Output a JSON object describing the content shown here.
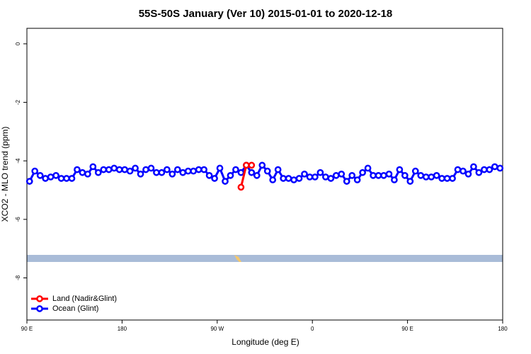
{
  "chart_data": {
    "type": "line",
    "title": "55S-50S January (Ver 10)   2015-01-01 to 2020-12-18",
    "xlabel": "Longitude (deg E)",
    "ylabel": "XCO2 - MLO trend (ppm)",
    "xlim": [
      90,
      540
    ],
    "ylim": [
      -9.44,
      0.53
    ],
    "xticks": [
      {
        "value": 90,
        "label": "90 E"
      },
      {
        "value": 180,
        "label": "180"
      },
      {
        "value": 270,
        "label": "90 W"
      },
      {
        "value": 360,
        "label": "0"
      },
      {
        "value": 450,
        "label": "90 E"
      },
      {
        "value": 540,
        "label": "180"
      }
    ],
    "yticks": [
      0,
      -2,
      -4,
      -6,
      -8
    ],
    "legend": "bottom-left",
    "series": [
      {
        "name": "Land (Nadir&Glint)",
        "color": "#ff0000",
        "x": [
          292.5,
          297.5,
          302.5
        ],
        "values": [
          -4.9,
          -4.15,
          -4.15
        ]
      },
      {
        "name": "Ocean (Glint)",
        "color": "#0000ff",
        "x": [
          92.5,
          97.5,
          102.5,
          107.5,
          112.5,
          117.5,
          122.5,
          127.5,
          132.5,
          137.5,
          142.5,
          147.5,
          152.5,
          157.5,
          162.5,
          167.5,
          172.5,
          177.5,
          182.5,
          187.5,
          192.5,
          197.5,
          202.5,
          207.5,
          212.5,
          217.5,
          222.5,
          227.5,
          232.5,
          237.5,
          242.5,
          247.5,
          252.5,
          257.5,
          262.5,
          267.5,
          272.5,
          277.5,
          282.5,
          287.5,
          292.5,
          297.5,
          302.5,
          307.5,
          312.5,
          317.5,
          322.5,
          327.5,
          332.5,
          337.5,
          342.5,
          347.5,
          352.5,
          357.5,
          362.5,
          367.5,
          372.5,
          377.5,
          382.5,
          387.5,
          392.5,
          397.5,
          402.5,
          407.5,
          412.5,
          417.5,
          422.5,
          427.5,
          432.5,
          437.5,
          442.5,
          447.5,
          452.5,
          457.5,
          462.5,
          467.5,
          472.5,
          477.5,
          482.5,
          487.5,
          492.5,
          497.5,
          502.5,
          507.5,
          512.5,
          517.5,
          522.5,
          527.5,
          532.5,
          537.5
        ],
        "values": [
          -4.7,
          -4.35,
          -4.5,
          -4.6,
          -4.55,
          -4.5,
          -4.6,
          -4.6,
          -4.6,
          -4.3,
          -4.4,
          -4.45,
          -4.2,
          -4.4,
          -4.3,
          -4.3,
          -4.25,
          -4.3,
          -4.3,
          -4.35,
          -4.25,
          -4.45,
          -4.3,
          -4.25,
          -4.4,
          -4.4,
          -4.3,
          -4.45,
          -4.3,
          -4.4,
          -4.35,
          -4.35,
          -4.3,
          -4.3,
          -4.5,
          -4.6,
          -4.25,
          -4.7,
          -4.5,
          -4.3,
          -4.4,
          -4.15,
          -4.4,
          -4.5,
          -4.15,
          -4.35,
          -4.65,
          -4.3,
          -4.6,
          -4.6,
          -4.65,
          -4.6,
          -4.45,
          -4.55,
          -4.55,
          -4.4,
          -4.55,
          -4.6,
          -4.5,
          -4.45,
          -4.7,
          -4.5,
          -4.65,
          -4.4,
          -4.25,
          -4.5,
          -4.5,
          -4.5,
          -4.45,
          -4.65,
          -4.3,
          -4.5,
          -4.7,
          -4.35,
          -4.5,
          -4.55,
          -4.55,
          -4.5,
          -4.6,
          -4.6,
          -4.6,
          -4.3,
          -4.35,
          -4.45,
          -4.2,
          -4.4,
          -4.3,
          -4.3,
          -4.2,
          -4.25
        ]
      }
    ]
  }
}
